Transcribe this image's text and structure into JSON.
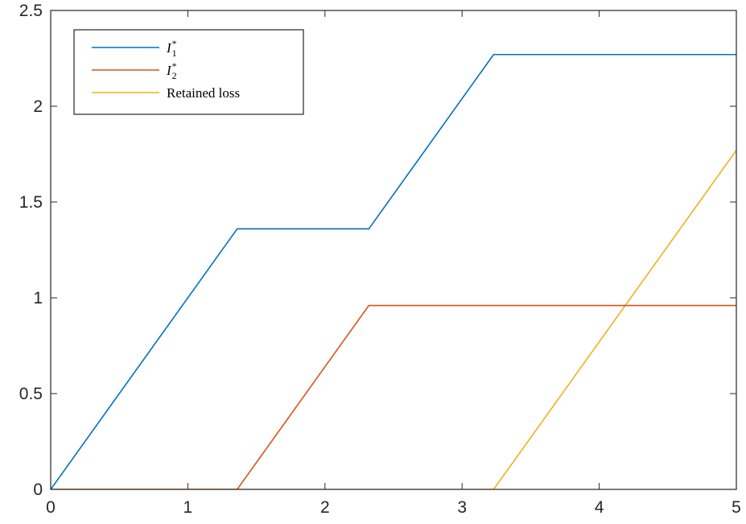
{
  "chart_data": {
    "type": "line",
    "title": "",
    "xlabel": "",
    "ylabel": "",
    "xlim": [
      0,
      5
    ],
    "ylim": [
      0,
      2.5
    ],
    "xticks": [
      0,
      1,
      2,
      3,
      4,
      5
    ],
    "xtick_labels": [
      "0",
      "1",
      "2",
      "3",
      "4",
      "5"
    ],
    "yticks": [
      0,
      0.5,
      1,
      1.5,
      2,
      2.5
    ],
    "ytick_labels": [
      "0",
      "0.5",
      "1",
      "1.5",
      "2",
      "2.5"
    ],
    "grid": false,
    "legend_position": "top-left",
    "series": [
      {
        "name": "I1*",
        "legend_base": "I",
        "legend_sub": "1",
        "legend_sup": "*",
        "color": "#0072BD",
        "x": [
          0,
          1.36,
          2.32,
          3.23,
          5
        ],
        "y": [
          0,
          1.36,
          1.36,
          2.27,
          2.27
        ]
      },
      {
        "name": "I2*",
        "legend_base": "I",
        "legend_sub": "2",
        "legend_sup": "*",
        "color": "#D95319",
        "x": [
          0,
          1.36,
          2.32,
          5
        ],
        "y": [
          0,
          0,
          0.96,
          0.96
        ]
      },
      {
        "name": "Retained loss",
        "legend_text": "Retained loss",
        "color": "#EDB120",
        "x": [
          0,
          3.23,
          5
        ],
        "y": [
          0,
          0,
          1.77
        ]
      }
    ]
  }
}
